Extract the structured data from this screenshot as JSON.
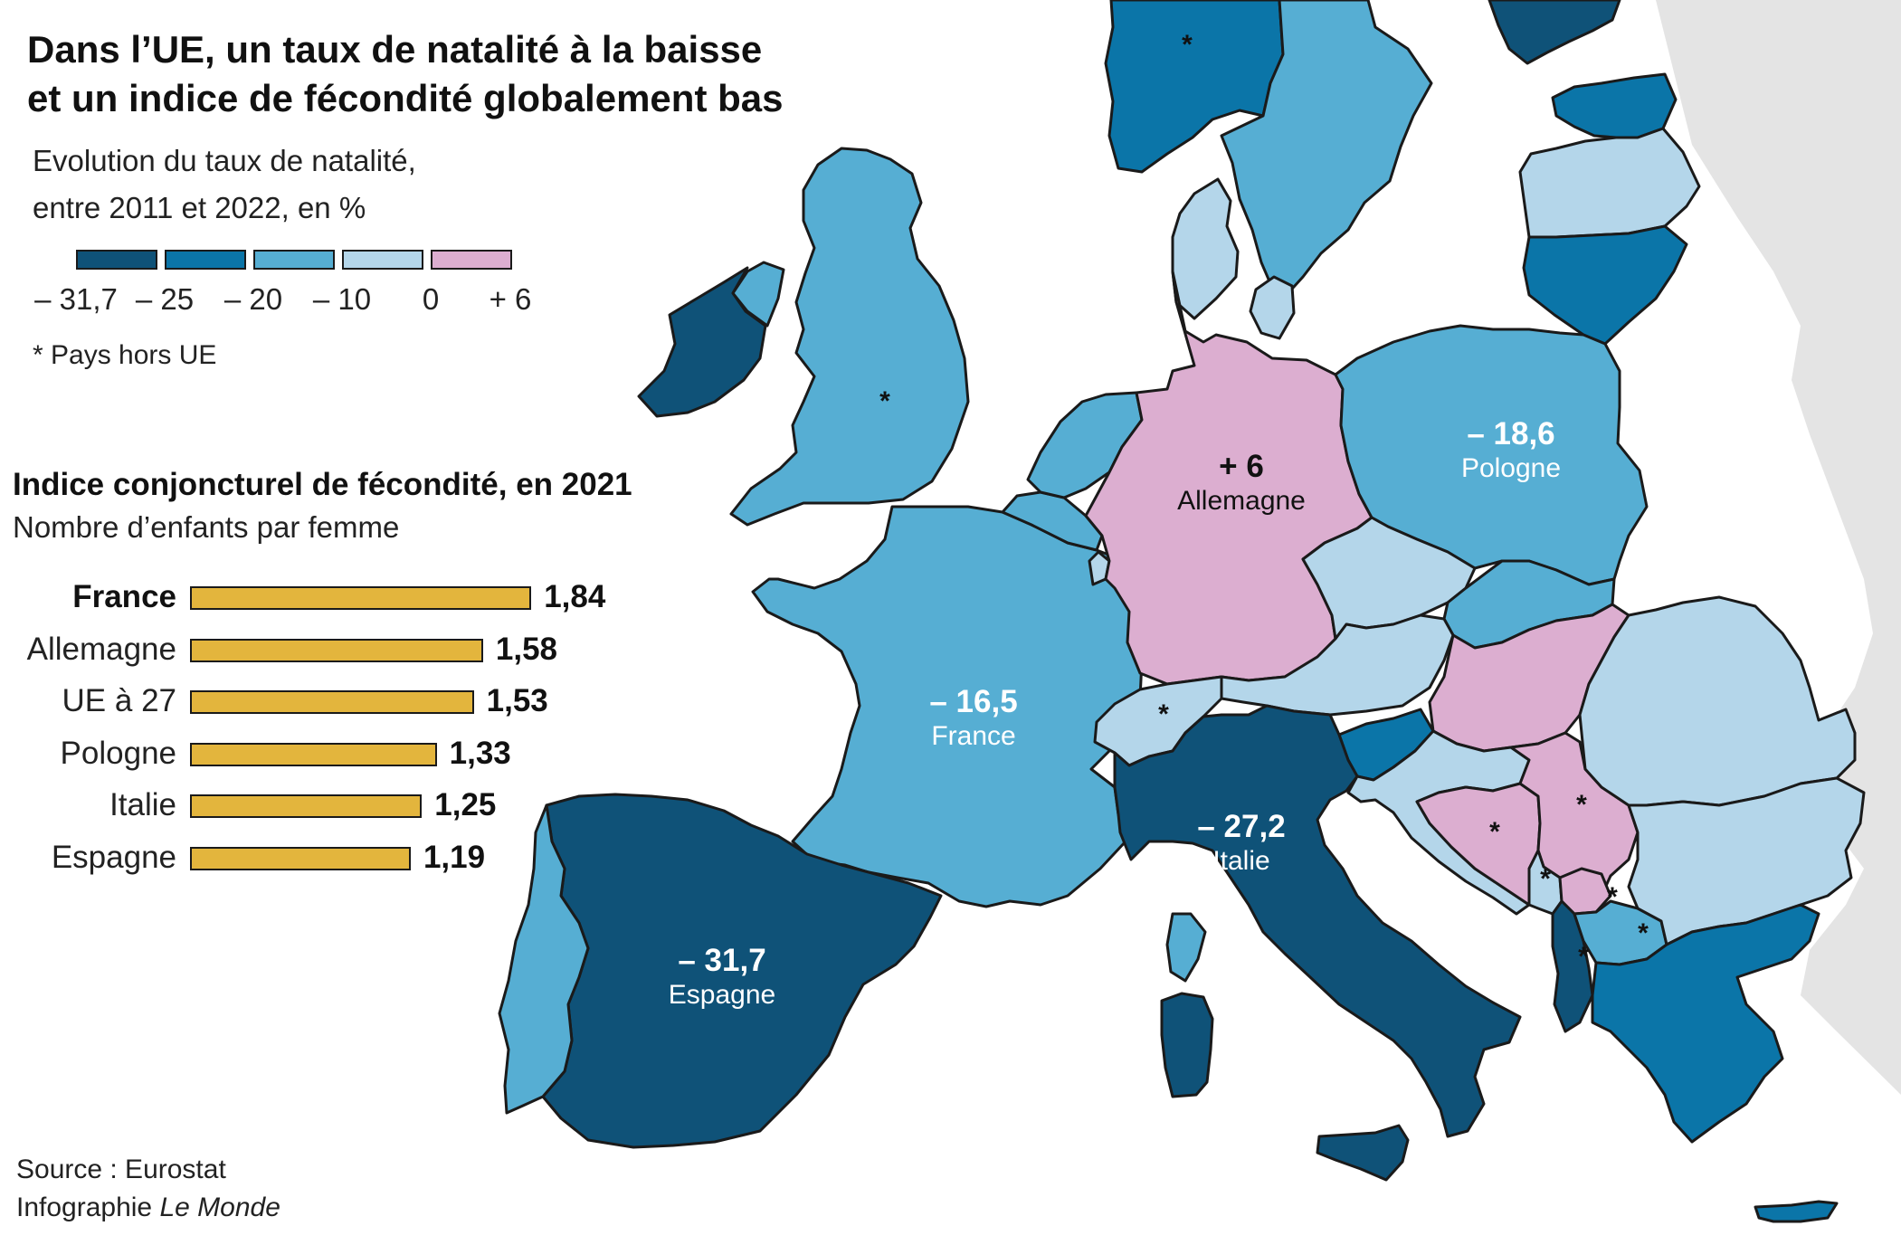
{
  "title_line1": "Dans l’UE, un taux de natalité à la baisse",
  "title_line2": "et un indice de fécondité globalement bas",
  "subtitle_line1": "Evolution du taux de natalité,",
  "subtitle_line2": "entre 2011 et 2022, en %",
  "legend": {
    "ticks": [
      "– 31,7",
      "– 25",
      "– 20",
      "– 10",
      "0",
      "+ 6"
    ],
    "colors": [
      "#0f5278",
      "#0b75a8",
      "#56aed3",
      "#b4d6ea",
      "#dcaed0"
    ]
  },
  "note": "* Pays hors UE",
  "fertility": {
    "title": "Indice conjoncturel de fécondité, en 2021",
    "subtitle": "Nombre d’enfants par femme",
    "items": [
      {
        "label": "France",
        "value": 1.84,
        "display": "1,84",
        "highlight": true
      },
      {
        "label": "Allemagne",
        "value": 1.58,
        "display": "1,58",
        "highlight": false
      },
      {
        "label": "UE à 27",
        "value": 1.53,
        "display": "1,53",
        "highlight": false
      },
      {
        "label": "Pologne",
        "value": 1.33,
        "display": "1,33",
        "highlight": false
      },
      {
        "label": "Italie",
        "value": 1.25,
        "display": "1,25",
        "highlight": false
      },
      {
        "label": "Espagne",
        "value": 1.19,
        "display": "1,19",
        "highlight": false
      }
    ],
    "bar_color": "#e3b53d"
  },
  "source": {
    "prefix": "Source :  Eurostat",
    "credit": "Infographie",
    "publisher": "Le Monde"
  },
  "map_labels": {
    "germany": {
      "value": "+ 6",
      "name": "Allemagne"
    },
    "poland": {
      "value": "– 18,6",
      "name": "Pologne"
    },
    "france": {
      "value": "– 16,5",
      "name": "France"
    },
    "italy": {
      "value": "– 27,2",
      "name": "Italie"
    },
    "spain": {
      "value": "– 31,7",
      "name": "Espagne"
    }
  },
  "non_eu_marker": "*"
}
